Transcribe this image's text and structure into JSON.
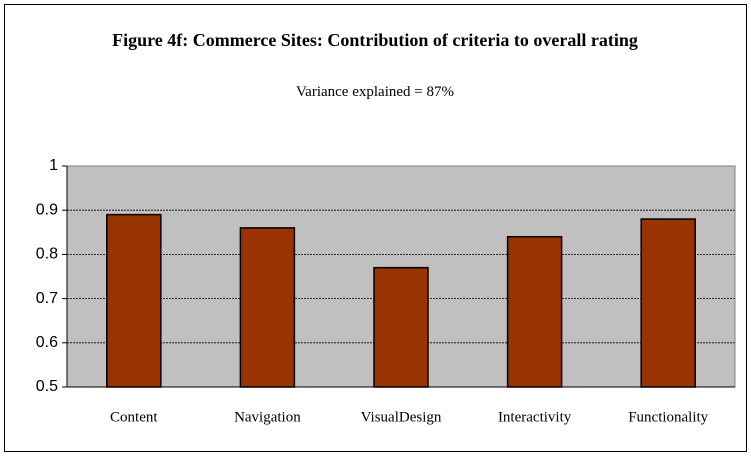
{
  "chart_data": {
    "type": "bar",
    "title": "Figure 4f: Commerce Sites: Contribution of criteria to overall rating",
    "subtitle": "Variance explained = 87%",
    "categories": [
      "Content",
      "Navigation",
      "VisualDesign",
      "Interactivity",
      "Functionality"
    ],
    "values": [
      0.89,
      0.86,
      0.77,
      0.84,
      0.88
    ],
    "color": "#993300",
    "ylim": [
      0.5,
      1
    ],
    "yticks": [
      0.5,
      0.6,
      0.7,
      0.8,
      0.9,
      1
    ],
    "grid": true
  }
}
